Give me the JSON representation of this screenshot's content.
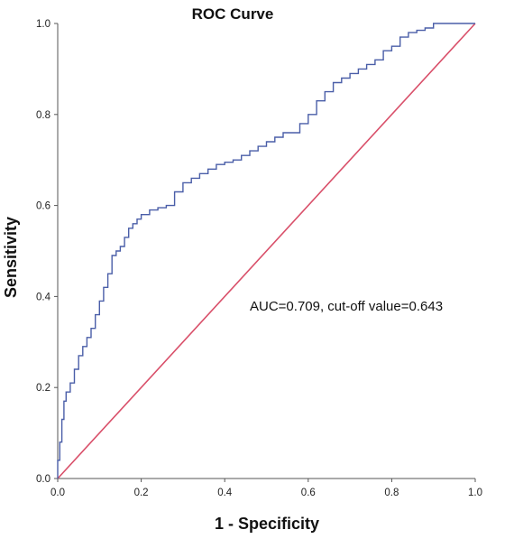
{
  "chart_data": {
    "type": "line",
    "title": "ROC Curve",
    "xlabel": "1 - Specificity",
    "ylabel": "Sensitivity",
    "xlim": [
      0.0,
      1.0
    ],
    "ylim": [
      0.0,
      1.0
    ],
    "x_ticks": [
      "0.0",
      "0.2",
      "0.4",
      "0.6",
      "0.8",
      "1.0"
    ],
    "y_ticks": [
      "0.0",
      "0.2",
      "0.4",
      "0.6",
      "0.8",
      "1.0"
    ],
    "grid": false,
    "annotation": "AUC=0.709, cut-off value=0.643",
    "colors": {
      "roc": "#4a5ea8",
      "reference": "#d9506a",
      "axis": "#555555"
    },
    "series": [
      {
        "values": [
          [
            0.0,
            0.0
          ],
          [
            0.005,
            0.04
          ],
          [
            0.01,
            0.08
          ],
          [
            0.015,
            0.13
          ],
          [
            0.02,
            0.17
          ],
          [
            0.03,
            0.19
          ],
          [
            0.04,
            0.21
          ],
          [
            0.05,
            0.24
          ],
          [
            0.06,
            0.27
          ],
          [
            0.07,
            0.29
          ],
          [
            0.08,
            0.31
          ],
          [
            0.09,
            0.33
          ],
          [
            0.1,
            0.36
          ],
          [
            0.11,
            0.39
          ],
          [
            0.12,
            0.42
          ],
          [
            0.13,
            0.45
          ],
          [
            0.14,
            0.49
          ],
          [
            0.15,
            0.5
          ],
          [
            0.16,
            0.51
          ],
          [
            0.17,
            0.53
          ],
          [
            0.18,
            0.55
          ],
          [
            0.19,
            0.56
          ],
          [
            0.2,
            0.57
          ],
          [
            0.22,
            0.58
          ],
          [
            0.24,
            0.59
          ],
          [
            0.26,
            0.595
          ],
          [
            0.28,
            0.6
          ],
          [
            0.3,
            0.63
          ],
          [
            0.32,
            0.65
          ],
          [
            0.34,
            0.66
          ],
          [
            0.36,
            0.67
          ],
          [
            0.38,
            0.68
          ],
          [
            0.4,
            0.69
          ],
          [
            0.42,
            0.695
          ],
          [
            0.44,
            0.7
          ],
          [
            0.46,
            0.71
          ],
          [
            0.48,
            0.72
          ],
          [
            0.5,
            0.73
          ],
          [
            0.52,
            0.74
          ],
          [
            0.54,
            0.75
          ],
          [
            0.56,
            0.76
          ],
          [
            0.58,
            0.76
          ],
          [
            0.6,
            0.78
          ],
          [
            0.62,
            0.8
          ],
          [
            0.64,
            0.83
          ],
          [
            0.66,
            0.85
          ],
          [
            0.68,
            0.87
          ],
          [
            0.7,
            0.88
          ],
          [
            0.72,
            0.89
          ],
          [
            0.74,
            0.9
          ],
          [
            0.76,
            0.91
          ],
          [
            0.78,
            0.92
          ],
          [
            0.8,
            0.94
          ],
          [
            0.82,
            0.95
          ],
          [
            0.84,
            0.97
          ],
          [
            0.86,
            0.98
          ],
          [
            0.88,
            0.985
          ],
          [
            0.9,
            0.99
          ],
          [
            0.92,
            1.0
          ],
          [
            1.0,
            1.0
          ]
        ]
      },
      {
        "values": [
          [
            0.0,
            0.0
          ],
          [
            1.0,
            1.0
          ]
        ]
      }
    ]
  }
}
